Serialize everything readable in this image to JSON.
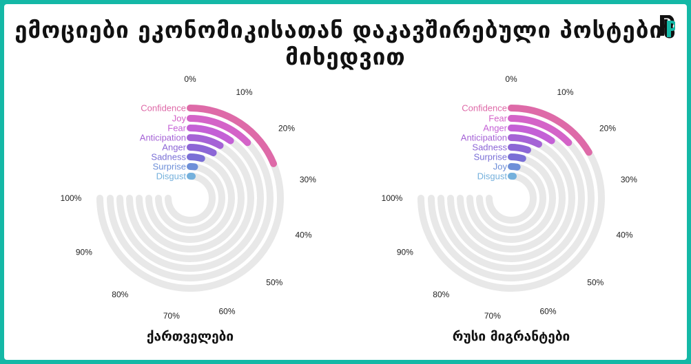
{
  "title": "ემოციები ეკონომიკისათან დაკავშირებული პოსტების მიხედვით",
  "colors": {
    "frame": "#14b8a6",
    "track": "#e8e8e8",
    "rings": [
      "#de6aa8",
      "#d463c8",
      "#c460d6",
      "#a563d6",
      "#8c66d6",
      "#7a6fd6",
      "#6e8fd8",
      "#74b0dc"
    ]
  },
  "chart_data": [
    {
      "type": "radial-bar",
      "caption": "ქართველები",
      "axis": {
        "min": 0,
        "max": 100,
        "ticks": [
          "0%",
          "10%",
          "20%",
          "30%",
          "40%",
          "50%",
          "60%",
          "70%",
          "80%",
          "90%",
          "100%"
        ]
      },
      "categories": [
        "Confidence",
        "Joy",
        "Fear",
        "Anticipation",
        "Anger",
        "Sadness",
        "Surprise",
        "Disgust"
      ],
      "values": [
        25,
        17,
        13,
        11,
        10,
        6,
        3,
        2
      ]
    },
    {
      "type": "radial-bar",
      "caption": "რუსი მიგრანტები",
      "axis": {
        "min": 0,
        "max": 100,
        "ticks": [
          "0%",
          "10%",
          "20%",
          "30%",
          "40%",
          "50%",
          "60%",
          "70%",
          "80%",
          "90%",
          "100%"
        ]
      },
      "categories": [
        "Confidence",
        "Fear",
        "Anger",
        "Anticipation",
        "Sadness",
        "Surprise",
        "Joy",
        "Disgust"
      ],
      "values": [
        22,
        17,
        13,
        10,
        7,
        6,
        4,
        2
      ]
    }
  ]
}
